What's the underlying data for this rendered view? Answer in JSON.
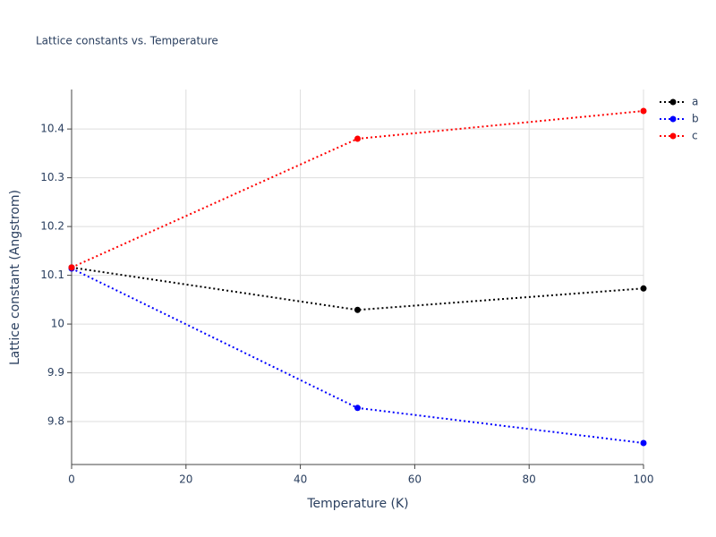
{
  "chart_data": {
    "type": "line",
    "title": "Lattice constants vs. Temperature",
    "x_label": "Temperature (K)",
    "y_label": "Lattice constant (Angstrom)",
    "x": [
      0,
      50,
      100
    ],
    "series": [
      {
        "name": "a",
        "color": "#000000",
        "values": [
          10.116,
          10.029,
          10.073
        ]
      },
      {
        "name": "b",
        "color": "#0000ff",
        "values": [
          10.114,
          9.828,
          9.756
        ]
      },
      {
        "name": "c",
        "color": "#ff0000",
        "values": [
          10.116,
          10.38,
          10.437
        ]
      }
    ],
    "xlim": [
      0,
      100
    ],
    "xticks": [
      0,
      20,
      40,
      60,
      80,
      100
    ],
    "ylim": [
      9.712,
      10.481
    ],
    "yticks": [
      9.8,
      9.9,
      10,
      10.1,
      10.2,
      10.3,
      10.4
    ],
    "grid": true,
    "legend": "top-right"
  }
}
